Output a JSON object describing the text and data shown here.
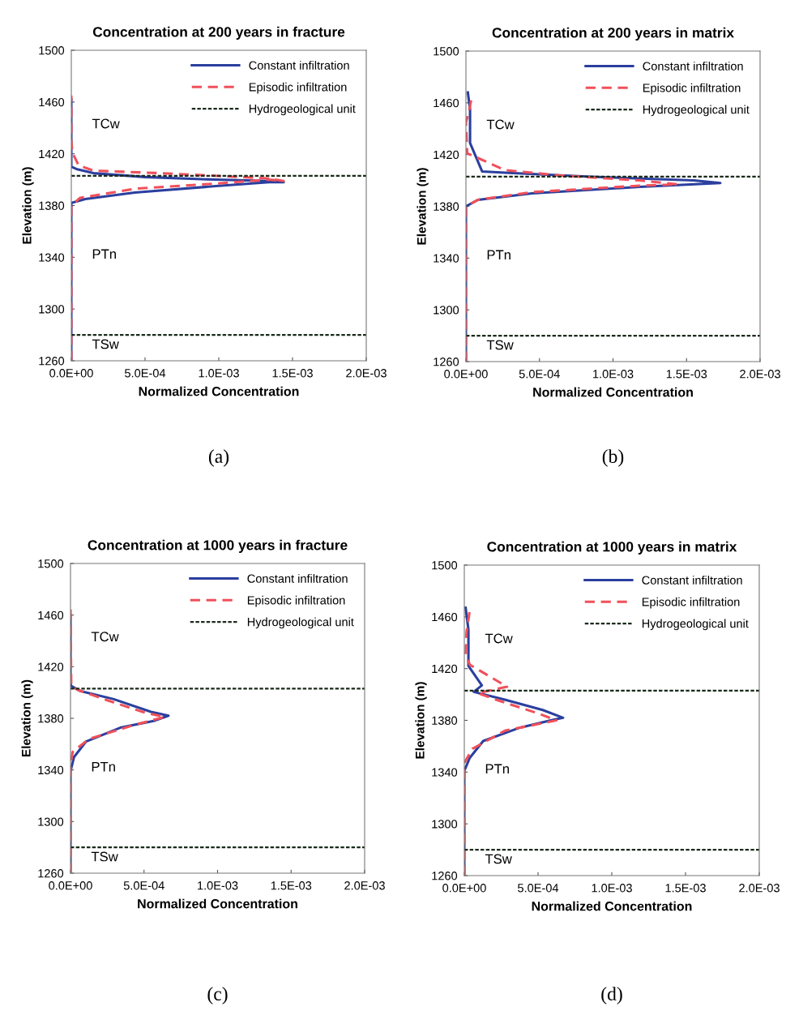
{
  "chart_data": [
    {
      "type": "line",
      "title": "Concentration at 200 years in fracture",
      "xlabel": "Normalized Concentration",
      "ylabel": "Elevation (m)",
      "xlim": [
        0,
        0.002
      ],
      "ylim": [
        1260,
        1500
      ],
      "xticks": [
        {
          "value": 0,
          "label": "0.0E+00"
        },
        {
          "value": 0.0005,
          "label": "5.0E-04"
        },
        {
          "value": 0.001,
          "label": "1.0E-03"
        },
        {
          "value": 0.0015,
          "label": "1.5E-03"
        },
        {
          "value": 0.002,
          "label": "2.0E-03"
        }
      ],
      "yticks": [
        1260,
        1300,
        1340,
        1380,
        1420,
        1460,
        1500
      ],
      "grid": false,
      "legend": "top right",
      "series": [
        {
          "name": "Constant infiltration",
          "color": "#2b3f9e",
          "line_style": "solid",
          "x": [
            0,
            0,
            9.5e-05,
            0.00043,
            0.00098,
            0.00134,
            0.00144,
            0.00134,
            0.00098,
            0.0005,
            0.00015,
            4e-05,
            0,
            0
          ],
          "values": [
            1260,
            1382,
            1385,
            1390,
            1395,
            1398,
            1398,
            1399,
            1400,
            1402,
            1405,
            1408,
            1410,
            1462
          ]
        },
        {
          "name": "Episodic infiltration",
          "color": "#f0505a",
          "line_style": "dashed",
          "x": [
            0,
            0,
            6e-05,
            0.00043,
            0.00098,
            0.00134,
            0.00144,
            0.00133,
            0.00061,
            0.00015,
            5e-05,
            7e-06,
            0,
            0
          ],
          "values": [
            1260,
            1380,
            1386,
            1393,
            1397,
            1400,
            1399,
            1401,
            1405,
            1407,
            1411,
            1421,
            1430,
            1465
          ]
        },
        {
          "name": "Hydrogeological unit",
          "color": "#1a2a1a",
          "line_style": "dotted",
          "x": [
            0,
            0.002
          ],
          "values": [
            1403,
            1403
          ]
        },
        {
          "color": "#1a2a1a",
          "line_style": "dotted",
          "x": [
            0,
            0.002
          ],
          "values": [
            1280,
            1280
          ]
        }
      ],
      "annotations": [
        "TCw",
        "PTn",
        "TSw",
        "(a)"
      ]
    },
    {
      "type": "line",
      "title": "Concentration at 200 years in matrix",
      "xlabel": "Normalized Concentration",
      "ylabel": "Elevation (m)",
      "xlim": [
        0,
        0.002
      ],
      "ylim": [
        1260,
        1500
      ],
      "xticks": [
        {
          "value": 0,
          "label": "0.0E+00"
        },
        {
          "value": 0.0005,
          "label": "5.0E-04"
        },
        {
          "value": 0.001,
          "label": "1.0E-03"
        },
        {
          "value": 0.0015,
          "label": "1.5E-03"
        },
        {
          "value": 0.002,
          "label": "2.0E-03"
        }
      ],
      "yticks": [
        1260,
        1300,
        1340,
        1380,
        1420,
        1460,
        1500
      ],
      "grid": false,
      "legend": "top right",
      "series": [
        {
          "name": "Constant infiltration",
          "color": "#2b3f9e",
          "line_style": "solid",
          "x": [
            0,
            0,
            8.3e-05,
            0.00045,
            0.00118,
            0.00173,
            0.00155,
            0.00082,
            0.000266,
            0.00011,
            2.8e-05,
            2.8e-05,
            1.3e-05
          ],
          "values": [
            1260,
            1380,
            1385,
            1390,
            1395,
            1398,
            1400,
            1403,
            1406,
            1407,
            1429,
            1455,
            1468
          ]
        },
        {
          "name": "Episodic infiltration",
          "color": "#f0505a",
          "line_style": "dashed",
          "x": [
            0,
            0,
            8e-05,
            0.00045,
            0.00118,
            0.00144,
            0.00118,
            0.00063,
            0.000266,
            9e-06,
            0,
            2e-05,
            3.7e-05
          ],
          "values": [
            1260,
            1380,
            1385,
            1391,
            1396,
            1397,
            1400,
            1404,
            1408,
            1421,
            1445,
            1453,
            1463
          ]
        },
        {
          "name": "Hydrogeological unit",
          "color": "#1a2a1a",
          "line_style": "dotted",
          "x": [
            0,
            0.002
          ],
          "values": [
            1403,
            1403
          ]
        },
        {
          "color": "#1a2a1a",
          "line_style": "dotted",
          "x": [
            0,
            0.002
          ],
          "values": [
            1280,
            1280
          ]
        }
      ],
      "annotations": [
        "TCw",
        "PTn",
        "TSw",
        "(b)"
      ]
    },
    {
      "type": "line",
      "title": "Concentration at 1000 years in fracture",
      "xlabel": "Normalized Concentration",
      "ylabel": "Elevation (m)",
      "xlim": [
        0,
        0.002
      ],
      "ylim": [
        1260,
        1500
      ],
      "xticks": [
        {
          "value": 0,
          "label": "0.0E+00"
        },
        {
          "value": 0.0005,
          "label": "5.0E-04"
        },
        {
          "value": 0.001,
          "label": "1.0E-03"
        },
        {
          "value": 0.0015,
          "label": "1.5E-03"
        },
        {
          "value": 0.002,
          "label": "2.0E-03"
        }
      ],
      "yticks": [
        1260,
        1300,
        1340,
        1380,
        1420,
        1460,
        1500
      ],
      "grid": false,
      "legend": "top right",
      "series": [
        {
          "name": "Constant infiltration",
          "color": "#2b3f9e",
          "line_style": "solid",
          "x": [
            0,
            0,
            2.4e-05,
            0.000106,
            0.000345,
            0.000565,
            0.000666,
            0.000547,
            0.00029,
            7e-05,
            5e-06,
            0,
            0
          ],
          "values": [
            1260,
            1339,
            1350,
            1362,
            1373,
            1378,
            1382,
            1385,
            1395,
            1401,
            1405,
            1407,
            1460
          ]
        },
        {
          "name": "Episodic infiltration",
          "color": "#f0505a",
          "line_style": "dashed",
          "x": [
            0,
            0,
            1.5e-05,
            0.000125,
            0.000437,
            0.00064,
            0.00049,
            0.00025,
            5e-05,
            5e-06,
            0
          ],
          "values": [
            1260,
            1345,
            1354,
            1364,
            1375,
            1381,
            1385,
            1394,
            1402,
            1405,
            1465
          ]
        },
        {
          "name": "Hydrogeological unit",
          "color": "#1a2a1a",
          "line_style": "dotted",
          "x": [
            0,
            0.002
          ],
          "values": [
            1403,
            1403
          ]
        },
        {
          "color": "#1a2a1a",
          "line_style": "dotted",
          "x": [
            0,
            0.002
          ],
          "values": [
            1280,
            1280
          ]
        }
      ],
      "annotations": [
        "TCw",
        "PTn",
        "TSw",
        "(c)"
      ]
    },
    {
      "type": "line",
      "title": "Concentration at 1000 years in matrix",
      "xlabel": "Normalized Concentration",
      "ylabel": "Elevation (m)",
      "xlim": [
        0,
        0.002
      ],
      "ylim": [
        1260,
        1500
      ],
      "xticks": [
        {
          "value": 0,
          "label": "0.0E+00"
        },
        {
          "value": 0.0005,
          "label": "5.0E-04"
        },
        {
          "value": 0.001,
          "label": "1.0E-03"
        },
        {
          "value": 0.0015,
          "label": "1.5E-03"
        },
        {
          "value": 0.002,
          "label": "2.0E-03"
        }
      ],
      "yticks": [
        1260,
        1300,
        1340,
        1380,
        1420,
        1460,
        1500
      ],
      "grid": false,
      "legend": "top right",
      "series": [
        {
          "name": "Constant infiltration",
          "color": "#2b3f9e",
          "line_style": "solid",
          "x": [
            0,
            0,
            3.7e-05,
            0.000128,
            0.000367,
            0.000587,
            0.00067,
            0.000532,
            0.000275,
            6.4e-05,
            0.000119,
            2.8e-05,
            2.8e-05,
            9e-06
          ],
          "values": [
            1260,
            1341,
            1351,
            1364,
            1374,
            1380,
            1382,
            1388,
            1396,
            1402,
            1407,
            1422,
            1450,
            1467
          ]
        },
        {
          "name": "Episodic infiltration",
          "color": "#f0505a",
          "line_style": "dashed",
          "x": [
            0,
            0,
            5.5e-05,
            0.000275,
            0.000624,
            0.00051,
            0.00024,
            9.2e-05,
            0.00029,
            3.7e-05,
            9e-06,
            1.5e-05,
            3.7e-05
          ],
          "values": [
            1260,
            1347,
            1358,
            1372,
            1380,
            1385,
            1395,
            1401,
            1406,
            1423,
            1431,
            1448,
            1465
          ]
        },
        {
          "name": "Hydrogeological unit",
          "color": "#1a2a1a",
          "line_style": "dotted",
          "x": [
            0,
            0.002
          ],
          "values": [
            1403,
            1403
          ]
        },
        {
          "color": "#1a2a1a",
          "line_style": "dotted",
          "x": [
            0,
            0.002
          ],
          "values": [
            1280,
            1280
          ]
        }
      ],
      "annotations": [
        "TCw",
        "PTn",
        "TSw",
        "(d)"
      ]
    }
  ]
}
